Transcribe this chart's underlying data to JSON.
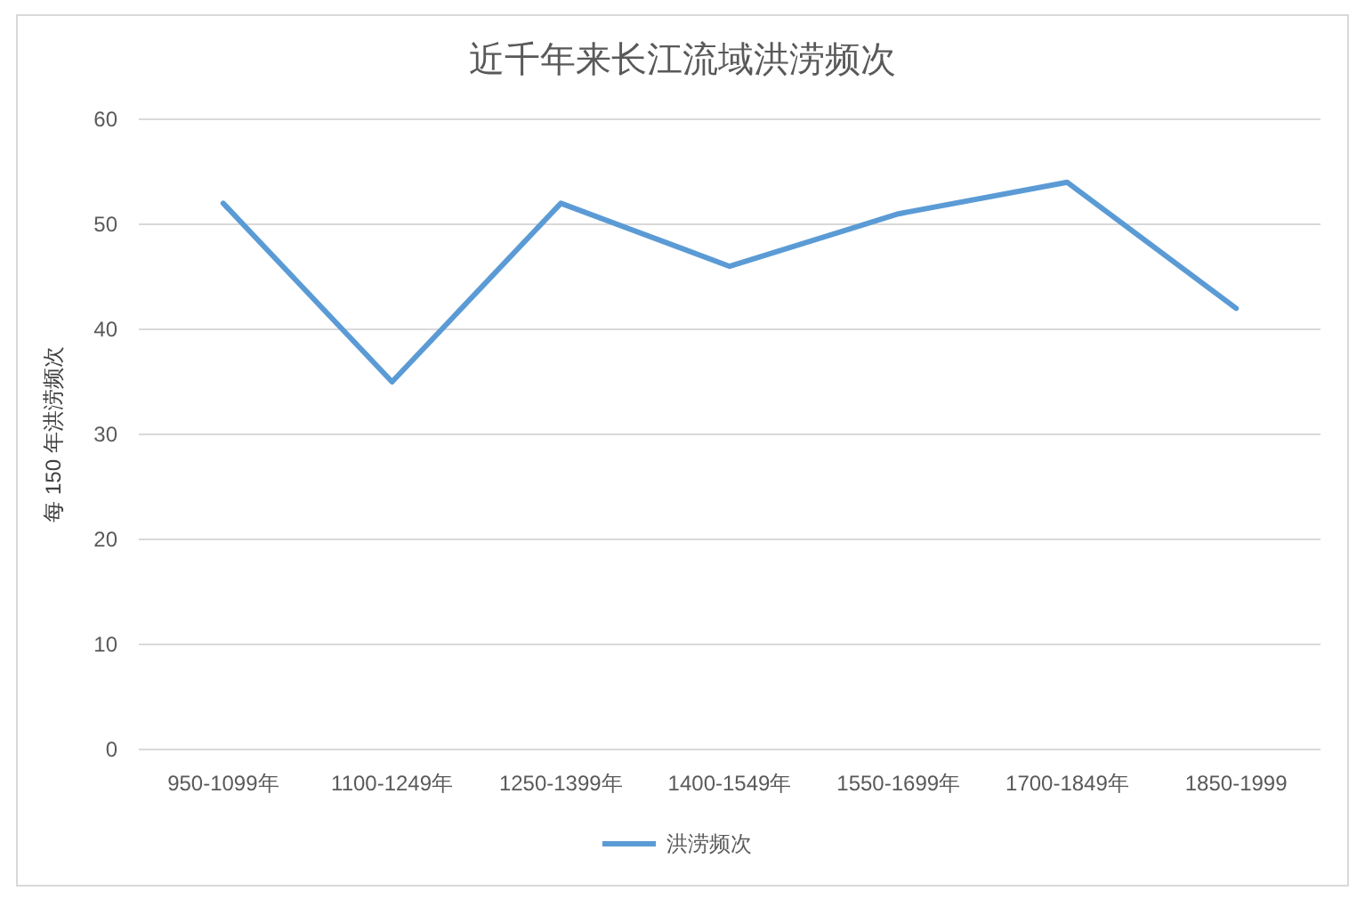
{
  "chart_data": {
    "type": "line",
    "title": "近千年来长江流域洪涝频次",
    "ylabel": "每 150 年洪涝频次",
    "categories": [
      "950-1099年",
      "1100-1249年",
      "1250-1399年",
      "1400-1549年",
      "1550-1699年",
      "1700-1849年",
      "1850-1999"
    ],
    "series": [
      {
        "name": "洪涝频次",
        "color": "#5b9bd5",
        "values": [
          52,
          35,
          52,
          46,
          51,
          54,
          42
        ]
      }
    ],
    "ylim": [
      0,
      60
    ],
    "yticks": [
      0,
      10,
      20,
      30,
      40,
      50,
      60
    ],
    "grid": "y",
    "legend": "bottom"
  }
}
